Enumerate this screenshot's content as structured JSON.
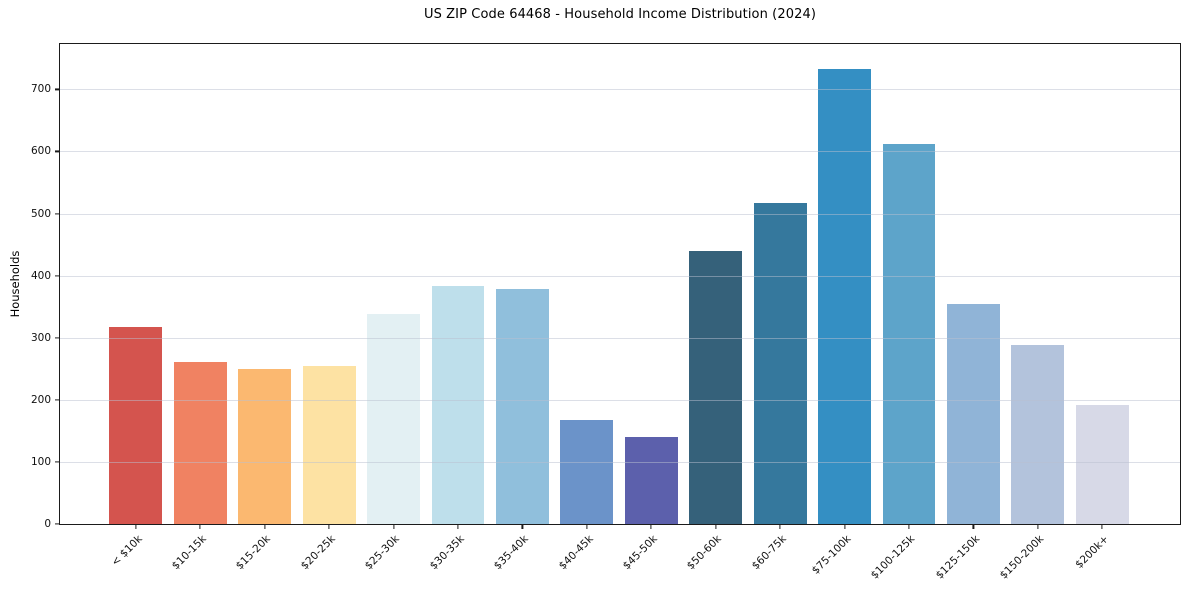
{
  "chart_data": {
    "type": "bar",
    "title": "US ZIP Code 64468 - Household Income Distribution (2024)",
    "xlabel": "",
    "ylabel": "Households",
    "categories": [
      "< $10k",
      "$10-15k",
      "$15-20k",
      "$20-25k",
      "$25-30k",
      "$30-35k",
      "$35-40k",
      "$40-45k",
      "$45-50k",
      "$50-60k",
      "$60-75k",
      "$75-100k",
      "$100-125k",
      "$125-150k",
      "$150-200k",
      "$200k+"
    ],
    "values": [
      318,
      261,
      249,
      255,
      339,
      384,
      379,
      168,
      140,
      440,
      517,
      732,
      612,
      354,
      289,
      192
    ],
    "bar_colors": [
      "#d4544e",
      "#f08262",
      "#fbb870",
      "#fde2a3",
      "#e3f0f3",
      "#bedfeb",
      "#90bfdc",
      "#6b93c9",
      "#5c60ac",
      "#35617a",
      "#35789d",
      "#348fc3",
      "#5da4ca",
      "#90b4d7",
      "#b3c3dc",
      "#d7d9e7"
    ],
    "yticks": [
      0,
      100,
      200,
      300,
      400,
      500,
      600,
      700
    ],
    "ylim": [
      0,
      773
    ],
    "x_tick_rotation": 45,
    "grid": "horizontal",
    "grid_over_bars": true,
    "legend": "none",
    "background_color": "#ffffff",
    "spine_color": "#1b1b1b",
    "text_color": "#111111"
  }
}
